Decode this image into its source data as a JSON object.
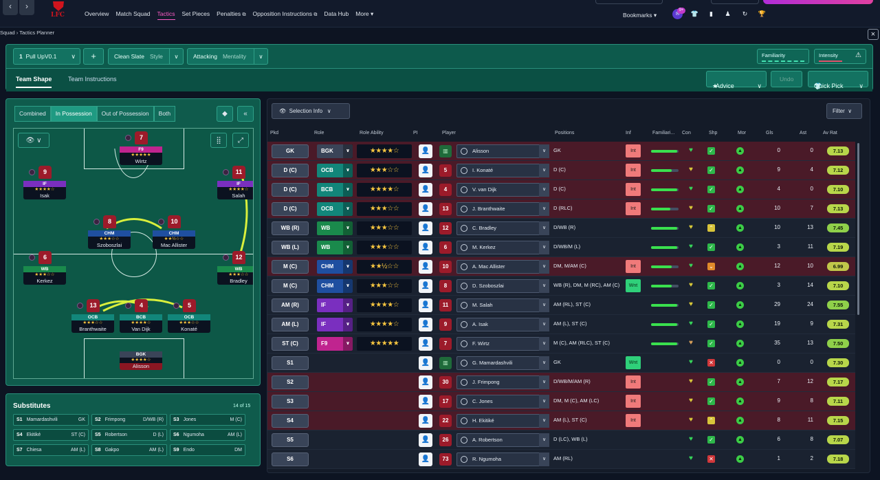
{
  "nav": {
    "items": [
      "Overview",
      "Match Squad",
      "Tactics",
      "Set Pieces",
      "Penalties",
      "Opposition Instructions",
      "Data Hub",
      "More"
    ],
    "active": "Tactics",
    "bookmarks": "Bookmarks",
    "notif": "9+",
    "crest_text": "LFC",
    "back": "‹",
    "forward": "›"
  },
  "breadcrumb": "Squad  ›  Tactics Planner",
  "close": "×",
  "tactic": {
    "number": "1",
    "name": "Pull UpV0.1",
    "add": "+",
    "style_value": "Clean Slate",
    "style_label": "Style",
    "mentality_value": "Attacking",
    "mentality_label": "Mentality",
    "familiarity": "Familiarity",
    "intensity": "Intensity"
  },
  "subtabs": {
    "team_shape": "Team Shape",
    "team_instructions": "Team Instructions"
  },
  "actions": {
    "advice": "Advice",
    "undo": "Undo",
    "quick_pick": "Quick Pick"
  },
  "phases": [
    "Combined",
    "In Possession",
    "Out of Possession",
    "Both"
  ],
  "phase_active": "In Possession",
  "pitch_players": [
    {
      "num": "7",
      "role": "F9",
      "stars": "★★★★★",
      "name": "Wirtz",
      "color": "#c0248f"
    },
    {
      "num": "9",
      "role": "IF",
      "stars": "★★★★☆",
      "name": "Isak",
      "color": "#7a2fbf"
    },
    {
      "num": "11",
      "role": "IF",
      "stars": "★★★★☆",
      "name": "Salah",
      "color": "#7a2fbf"
    },
    {
      "num": "8",
      "role": "CHM",
      "stars": "★★★☆☆",
      "name": "Szoboszlai",
      "color": "#1f4fa0"
    },
    {
      "num": "10",
      "role": "CHM",
      "stars": "★★½☆☆",
      "name": "Mac Allister",
      "color": "#1f4fa0"
    },
    {
      "num": "6",
      "role": "WB",
      "stars": "★★★☆☆",
      "name": "Kerkez",
      "color": "#1a8a4c"
    },
    {
      "num": "12",
      "role": "WB",
      "stars": "★★★☆☆",
      "name": "Bradley",
      "color": "#1a8a4c"
    },
    {
      "num": "13",
      "role": "OCB",
      "stars": "★★★☆☆",
      "name": "Branthwaite",
      "color": "#12867a"
    },
    {
      "num": "4",
      "role": "BCB",
      "stars": "★★★★☆",
      "name": "Van Dijk",
      "color": "#12867a"
    },
    {
      "num": "5",
      "role": "OCB",
      "stars": "★★★☆☆",
      "name": "Konaté",
      "color": "#12867a"
    },
    {
      "num": "1",
      "role": "BGK",
      "stars": "★★★★☆",
      "name": "Alisson",
      "color": "#3a4458"
    }
  ],
  "substitutes": {
    "title": "Substitutes",
    "count": "14 of 15",
    "list": [
      {
        "slot": "S1",
        "name": "Mamardashvili",
        "pos": "GK"
      },
      {
        "slot": "S2",
        "name": "Frimpong",
        "pos": "D/WB (R)"
      },
      {
        "slot": "S3",
        "name": "Jones",
        "pos": "M (C)"
      },
      {
        "slot": "S4",
        "name": "Ekitiké",
        "pos": "ST (C)"
      },
      {
        "slot": "S5",
        "name": "Robertson",
        "pos": "D (L)"
      },
      {
        "slot": "S6",
        "name": "Ngumoha",
        "pos": "AM (L)"
      },
      {
        "slot": "S7",
        "name": "Chiesa",
        "pos": "AM (L)"
      },
      {
        "slot": "S8",
        "name": "Gakpo",
        "pos": "AM (L)"
      },
      {
        "slot": "S9",
        "name": "Endo",
        "pos": "DM"
      }
    ]
  },
  "selection_info": "Selection Info",
  "filter": "Filter",
  "columns": [
    "Pkd",
    "Role",
    "Role Ability",
    "PI",
    "Player",
    "Positions",
    "Inf",
    "Familiari...",
    "Con",
    "Shp",
    "Mor",
    "Gls",
    "Ast",
    "Av Rat"
  ],
  "rows": [
    {
      "pkd": "GK",
      "role": "BGK",
      "rcolor": "#3a4458",
      "ability": "★★★★☆",
      "num": "",
      "gk": true,
      "player": "Alisson",
      "positions": "GK",
      "inf": "Int",
      "fam": 0.95,
      "con": "#37d65a",
      "shp": "tick",
      "gls": "0",
      "ast": "0",
      "rat": "7.13",
      "bg": "#4a1a28"
    },
    {
      "pkd": "D (C)",
      "role": "OCB",
      "rcolor": "#12867a",
      "ability": "★★★☆☆",
      "num": "5",
      "player": "I. Konaté",
      "positions": "D (C)",
      "inf": "Int",
      "fam": 0.75,
      "con": "#d9c93a",
      "shp": "tick",
      "gls": "9",
      "ast": "4",
      "rat": "7.12",
      "bg": "#4a1a28"
    },
    {
      "pkd": "D (C)",
      "role": "BCB",
      "rcolor": "#12867a",
      "ability": "★★★★☆",
      "num": "4",
      "player": "V. van Dijk",
      "positions": "D (C)",
      "inf": "Int",
      "fam": 0.95,
      "con": "#37d65a",
      "shp": "tick",
      "gls": "4",
      "ast": "0",
      "rat": "7.10",
      "bg": "#4a1a28"
    },
    {
      "pkd": "D (C)",
      "role": "OCB",
      "rcolor": "#12867a",
      "ability": "★★★☆☆",
      "num": "13",
      "player": "J. Branthwaite",
      "positions": "D (RLC)",
      "inf": "Int",
      "fam": 0.7,
      "con": "#d9c93a",
      "shp": "tick",
      "gls": "10",
      "ast": "7",
      "rat": "7.13",
      "bg": "#4a1a28"
    },
    {
      "pkd": "WB (R)",
      "role": "WB",
      "rcolor": "#1a8a4c",
      "ability": "★★★☆☆",
      "num": "12",
      "player": "C. Bradley",
      "positions": "D/WB (R)",
      "inf": "",
      "fam": 0.95,
      "con": "#d9c93a",
      "shp": "up",
      "gls": "10",
      "ast": "13",
      "rat": "7.45",
      "bg": "#1a2230"
    },
    {
      "pkd": "WB (L)",
      "role": "WB",
      "rcolor": "#1a8a4c",
      "ability": "★★★☆☆",
      "num": "6",
      "player": "M. Kerkez",
      "positions": "D/WB/M (L)",
      "inf": "",
      "fam": 0.95,
      "con": "#37d65a",
      "shp": "tick",
      "gls": "3",
      "ast": "11",
      "rat": "7.19",
      "bg": "#1a2230"
    },
    {
      "pkd": "M (C)",
      "role": "CHM",
      "rcolor": "#1f4fa0",
      "ability": "★★½☆☆",
      "num": "10",
      "player": "A. Mac Allister",
      "positions": "DM, M/AM (C)",
      "inf": "Int",
      "fam": 0.75,
      "con": "#37d65a",
      "shp": "down",
      "gls": "12",
      "ast": "10",
      "rat": "6.99",
      "bg": "#4a1a28"
    },
    {
      "pkd": "M (C)",
      "role": "CHM",
      "rcolor": "#1f4fa0",
      "ability": "★★★☆☆",
      "num": "8",
      "player": "D. Szoboszlai",
      "positions": "WB (R), DM, M (RC), AM (C)",
      "inf": "Wnt",
      "fam": 0.75,
      "con": "#d9c93a",
      "shp": "tick",
      "gls": "3",
      "ast": "14",
      "rat": "7.10",
      "bg": "#1a2230"
    },
    {
      "pkd": "AM (R)",
      "role": "IF",
      "rcolor": "#7a2fbf",
      "ability": "★★★★☆",
      "num": "11",
      "player": "M. Salah",
      "positions": "AM (RL), ST (C)",
      "inf": "",
      "fam": 0.95,
      "con": "#d9c93a",
      "shp": "tick",
      "gls": "29",
      "ast": "24",
      "rat": "7.55",
      "bg": "#1a2230"
    },
    {
      "pkd": "AM (L)",
      "role": "IF",
      "rcolor": "#7a2fbf",
      "ability": "★★★★☆",
      "num": "9",
      "player": "A. Isak",
      "positions": "AM (L), ST (C)",
      "inf": "",
      "fam": 0.95,
      "con": "#37d65a",
      "shp": "tick",
      "gls": "19",
      "ast": "9",
      "rat": "7.31",
      "bg": "#1a2230"
    },
    {
      "pkd": "ST (C)",
      "role": "F9",
      "rcolor": "#c0248f",
      "ability": "★★★★★",
      "num": "7",
      "player": "F. Wirtz",
      "positions": "M (C), AM (RLC), ST (C)",
      "inf": "",
      "fam": 0.95,
      "con": "#d9a05a",
      "shp": "tick",
      "gls": "35",
      "ast": "13",
      "rat": "7.50",
      "bg": "#1a2230"
    },
    {
      "pkd": "S1",
      "role": "",
      "rcolor": "",
      "ability": "",
      "num": "",
      "gk": true,
      "player": "G. Mamardashvili",
      "positions": "GK",
      "inf": "Wnt",
      "fam": 0,
      "con": "#37d65a",
      "shp": "cross",
      "gls": "0",
      "ast": "0",
      "rat": "7.30",
      "bg": "#1a2230"
    },
    {
      "pkd": "S2",
      "role": "",
      "rcolor": "",
      "ability": "",
      "num": "30",
      "player": "J. Frimpong",
      "positions": "D/WB/M/AM (R)",
      "inf": "Int",
      "fam": 0,
      "con": "#d9c93a",
      "shp": "tick",
      "gls": "7",
      "ast": "12",
      "rat": "7.17",
      "bg": "#4a1a28"
    },
    {
      "pkd": "S3",
      "role": "",
      "rcolor": "",
      "ability": "",
      "num": "17",
      "player": "C. Jones",
      "positions": "DM, M (C), AM (LC)",
      "inf": "Int",
      "fam": 0,
      "con": "#d9c93a",
      "shp": "tick",
      "gls": "9",
      "ast": "8",
      "rat": "7.11",
      "bg": "#4a1a28"
    },
    {
      "pkd": "S4",
      "role": "",
      "rcolor": "",
      "ability": "",
      "num": "22",
      "player": "H. Ekitiké",
      "positions": "AM (L), ST (C)",
      "inf": "Int",
      "fam": 0,
      "con": "#d9c93a",
      "shp": "up",
      "gls": "8",
      "ast": "11",
      "rat": "7.15",
      "bg": "#4a1a28"
    },
    {
      "pkd": "S5",
      "role": "",
      "rcolor": "",
      "ability": "",
      "num": "26",
      "player": "A. Robertson",
      "positions": "D (LC), WB (L)",
      "inf": "",
      "fam": 0,
      "con": "#37d65a",
      "shp": "tick",
      "gls": "6",
      "ast": "8",
      "rat": "7.07",
      "bg": "#1a2230"
    },
    {
      "pkd": "S6",
      "role": "",
      "rcolor": "",
      "ability": "",
      "num": "73",
      "player": "R. Ngumoha",
      "positions": "AM (RL)",
      "inf": "",
      "fam": 0,
      "con": "#37d65a",
      "shp": "cross",
      "gls": "1",
      "ast": "2",
      "rat": "7.18",
      "bg": "#1a2230"
    }
  ]
}
